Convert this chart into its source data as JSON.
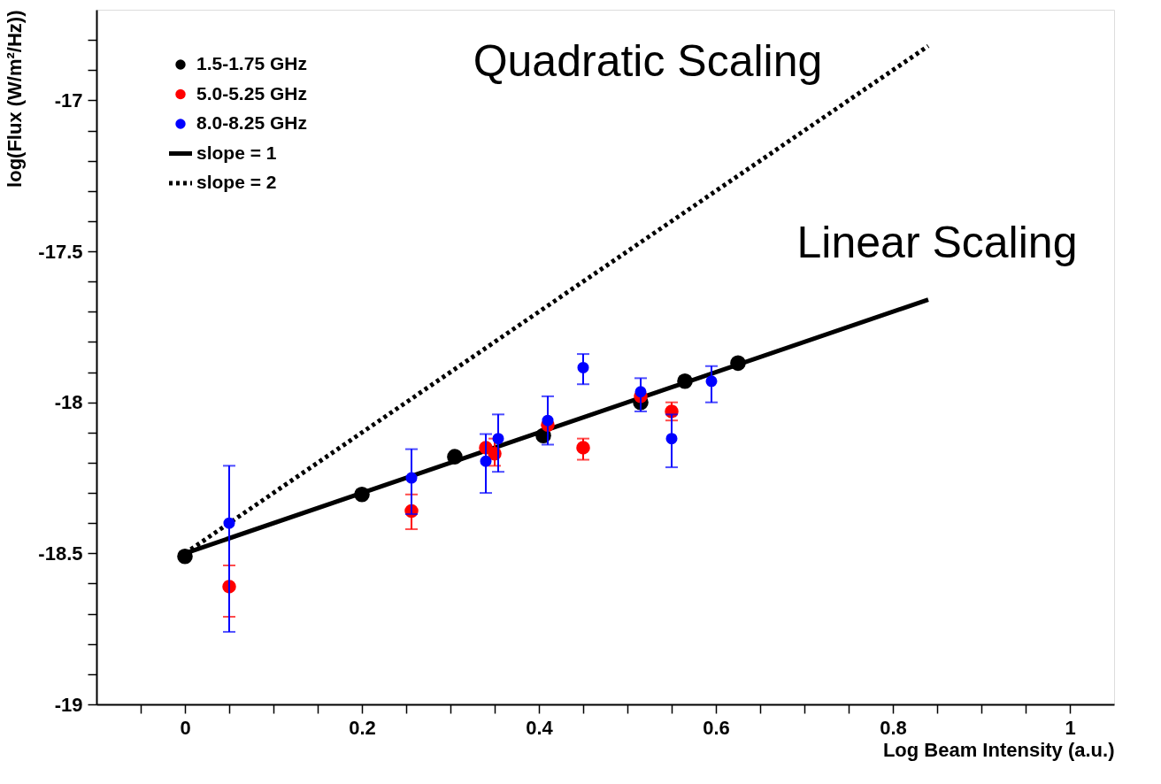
{
  "chart_data": {
    "type": "scatter",
    "xlabel": "Log Beam Intensity (a.u.)",
    "ylabel": "log(Flux (W/m²/Hz))",
    "xlim": [
      -0.1,
      1.05
    ],
    "ylim": [
      -19,
      -16.7
    ],
    "xticks": [
      {
        "value": -0.05,
        "label": null
      },
      0,
      {
        "value": 0.05,
        "label": null
      },
      {
        "value": 0.1,
        "label": null
      },
      {
        "value": 0.15,
        "label": null
      },
      0.2,
      {
        "value": 0.25,
        "label": null
      },
      {
        "value": 0.3,
        "label": null
      },
      {
        "value": 0.35,
        "label": null
      },
      0.4,
      {
        "value": 0.45,
        "label": null
      },
      {
        "value": 0.5,
        "label": null
      },
      {
        "value": 0.55,
        "label": null
      },
      0.6,
      {
        "value": 0.65,
        "label": null
      },
      {
        "value": 0.7,
        "label": null
      },
      {
        "value": 0.75,
        "label": null
      },
      0.8,
      {
        "value": 0.85,
        "label": null
      },
      {
        "value": 0.9,
        "label": null
      },
      {
        "value": 0.95,
        "label": null
      },
      1
    ],
    "yticks": [
      -19,
      {
        "value": -18.9,
        "label": null
      },
      {
        "value": -18.8,
        "label": null
      },
      {
        "value": -18.7,
        "label": null
      },
      {
        "value": -18.6,
        "label": null
      },
      -18.5,
      {
        "value": -18.4,
        "label": null
      },
      {
        "value": -18.3,
        "label": null
      },
      {
        "value": -18.2,
        "label": null
      },
      {
        "value": -18.1,
        "label": null
      },
      -18,
      {
        "value": -17.9,
        "label": null
      },
      {
        "value": -17.8,
        "label": null
      },
      {
        "value": -17.7,
        "label": null
      },
      {
        "value": -17.6,
        "label": null
      },
      -17.5,
      {
        "value": -17.4,
        "label": null
      },
      {
        "value": -17.3,
        "label": null
      },
      {
        "value": -17.2,
        "label": null
      },
      {
        "value": -17.1,
        "label": null
      },
      -17,
      {
        "value": -16.9,
        "label": null
      },
      {
        "value": -16.8,
        "label": null
      }
    ],
    "grid": false,
    "legend": "top left",
    "annotations": [
      "Quadratic Scaling",
      "Linear Scaling"
    ],
    "series": [
      {
        "name": "slope = 1",
        "type": "line",
        "marker": "none",
        "color": "#000000",
        "line_style": "solid",
        "x": [
          0,
          0.84
        ],
        "values": [
          -18.5,
          -17.66
        ]
      },
      {
        "name": "slope = 2",
        "type": "line",
        "marker": "none",
        "color": "#000000",
        "line_style": "dotted",
        "x": [
          0,
          0.84
        ],
        "values": [
          -18.5,
          -16.82
        ]
      },
      {
        "name": "1.5-1.75 GHz",
        "marker": "circle",
        "color": "#000000",
        "x": [
          0,
          0.2,
          0.305,
          0.405,
          0.515,
          0.565,
          0.625
        ],
        "values": [
          -18.51,
          -18.305,
          -18.18,
          -18.11,
          -18.0,
          -17.93,
          -17.87
        ]
      },
      {
        "name": "5.0-5.25 GHz",
        "marker": "circle",
        "color": "#ff0000",
        "x": [
          0.05,
          0.256,
          0.34,
          0.35,
          0.41,
          0.45,
          0.515,
          0.55
        ],
        "values": [
          -18.61,
          -18.36,
          -18.15,
          -18.17,
          -18.075,
          -18.15,
          -17.98,
          -18.03
        ],
        "errors": [
          [
            -18.71,
            -18.54
          ],
          [
            -18.42,
            -18.305
          ],
          null,
          [
            -18.21,
            -18.12
          ],
          null,
          [
            -18.19,
            -18.12
          ],
          null,
          [
            -18.06,
            -18.0
          ]
        ]
      },
      {
        "name": "8.0-8.25 GHz",
        "marker": "circle",
        "color": "#0000ff",
        "x": [
          0.05,
          0.256,
          0.34,
          0.354,
          0.41,
          0.45,
          0.515,
          0.55,
          0.595
        ],
        "values": [
          -18.4,
          -18.25,
          -18.195,
          -18.12,
          -18.06,
          -17.885,
          -17.965,
          -18.12,
          -17.93
        ],
        "errors": [
          [
            -18.76,
            -18.21
          ],
          [
            -18.37,
            -18.155
          ],
          [
            -18.3,
            -18.105
          ],
          [
            -18.23,
            -18.04
          ],
          [
            -18.14,
            -17.98
          ],
          [
            -17.94,
            -17.84
          ],
          [
            -18.03,
            -17.92
          ],
          [
            -18.215,
            -18.04
          ],
          [
            -18.0,
            -17.88
          ]
        ]
      }
    ]
  }
}
